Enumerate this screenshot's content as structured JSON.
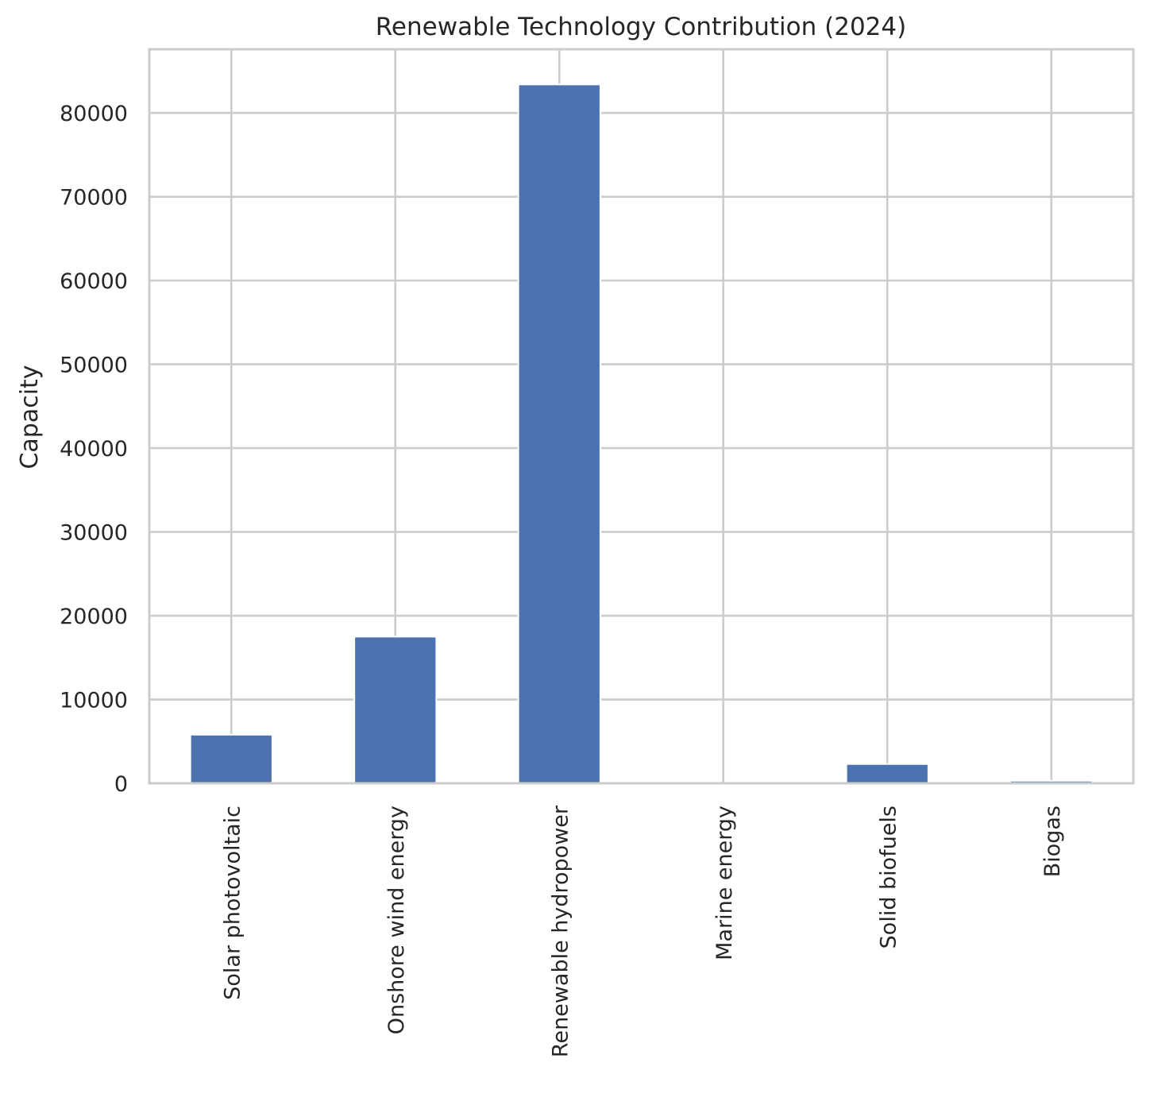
{
  "chart_data": {
    "type": "bar",
    "title": "Renewable Technology Contribution (2024)",
    "xlabel": "",
    "ylabel": "Capacity",
    "categories": [
      "Solar photovoltaic",
      "Onshore wind energy",
      "Renewable hydropower",
      "Marine energy",
      "Solid biofuels",
      "Biogas"
    ],
    "values": [
      5800,
      17500,
      83400,
      0,
      2300,
      300
    ],
    "ylim": [
      0,
      87600
    ],
    "yticks": [
      0,
      10000,
      20000,
      30000,
      40000,
      50000,
      60000,
      70000,
      80000
    ],
    "bar_color": "#4c72b0",
    "grid": true,
    "legend": false
  }
}
